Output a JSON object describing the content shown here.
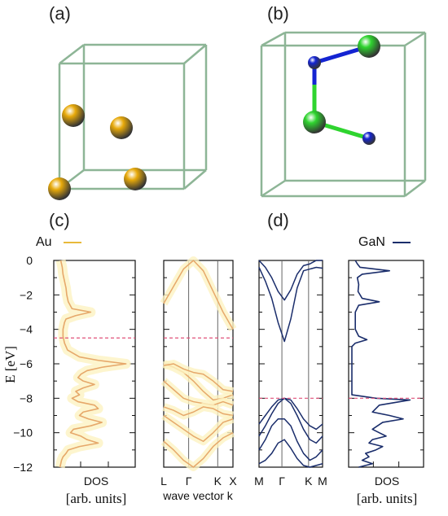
{
  "figure": {
    "labels": {
      "a": "(a)",
      "b": "(b)",
      "c": "(c)",
      "d": "(d)"
    },
    "colors": {
      "au_line": "#e8b93a",
      "au_band": "#e6a86a",
      "au_glow": "#fdf3c2",
      "gan_line": "#1a2d6b",
      "fermi": "#e0507a",
      "cell_edge": "#8db596",
      "au_atom": "#e7a90a",
      "ga_atom": "#2fd42f",
      "n_atom": "#1424d2",
      "bond_ga": "#2fd42f",
      "bond_n": "#1424d2"
    }
  },
  "chart_data": [
    {
      "type": "line",
      "panel": "Au DOS",
      "legend": "Au",
      "ylabel": "E [eV]",
      "xlabel": "DOS",
      "xunits": "[arb. units]",
      "ylim": [
        -12,
        0
      ],
      "yticks": [
        0,
        -2,
        -4,
        -6,
        -8,
        -10,
        -12
      ],
      "fermi_level": -4.5,
      "series": [
        {
          "energies": [
            0,
            -0.4,
            -0.8,
            -1.2,
            -1.6,
            -2.0,
            -2.4,
            -2.8,
            -3.0,
            -3.2,
            -3.4,
            -3.6,
            -4.0,
            -4.4,
            -4.8,
            -5.2,
            -5.6,
            -5.8,
            -6.0,
            -6.2,
            -6.4,
            -6.6,
            -6.8,
            -7.0,
            -7.2,
            -7.4,
            -7.6,
            -7.8,
            -8.0,
            -8.2,
            -8.4,
            -8.6,
            -8.8,
            -9.0,
            -9.2,
            -9.4,
            -9.6,
            -9.8,
            -10.0,
            -10.2,
            -10.4,
            -10.6,
            -10.8,
            -11.0,
            -11.2,
            -11.4,
            -11.6,
            -11.8,
            -12.0
          ],
          "dos": [
            0.05,
            0.07,
            0.08,
            0.1,
            0.12,
            0.13,
            0.15,
            0.2,
            0.45,
            0.25,
            0.12,
            0.1,
            0.08,
            0.08,
            0.1,
            0.14,
            0.3,
            0.55,
            0.92,
            0.6,
            0.4,
            0.32,
            0.28,
            0.35,
            0.5,
            0.35,
            0.25,
            0.3,
            0.2,
            0.28,
            0.5,
            0.55,
            0.35,
            0.3,
            0.42,
            0.6,
            0.45,
            0.22,
            0.18,
            0.32,
            0.4,
            0.55,
            0.3,
            0.15,
            0.12,
            0.08,
            0.06,
            0.05,
            0.04
          ]
        }
      ]
    },
    {
      "type": "line",
      "panel": "Au band structure",
      "xlabel": "wave vector k",
      "ylim": [
        -12,
        0
      ],
      "kpoints": [
        "L",
        "Γ",
        "K",
        "X"
      ],
      "fermi_level": -4.5,
      "bands": [
        {
          "energies": [
            -6.0,
            -6.2,
            -6.5,
            -7.0,
            -7.6,
            -8.1,
            -8.0,
            -7.8
          ]
        },
        {
          "energies": [
            -6.1,
            -6.0,
            -6.3,
            -6.5,
            -6.6,
            -7.0,
            -7.5,
            -7.6
          ]
        },
        {
          "energies": [
            -7.0,
            -7.5,
            -8.0,
            -8.2,
            -8.3,
            -8.4,
            -8.2,
            -8.4
          ]
        },
        {
          "energies": [
            -8.5,
            -8.7,
            -9.0,
            -8.8,
            -8.5,
            -8.6,
            -8.9,
            -9.0
          ]
        },
        {
          "energies": [
            -9.0,
            -9.4,
            -9.8,
            -10.2,
            -10.5,
            -10.0,
            -9.4,
            -9.2
          ]
        },
        {
          "energies": [
            -10.5,
            -11.0,
            -11.6,
            -12.0,
            -11.5,
            -10.8,
            -10.3,
            -10.0
          ]
        },
        {
          "energies": [
            -2.5,
            -1.5,
            -0.5,
            0.0,
            -0.6,
            -1.8,
            -3.0,
            -4.0
          ]
        }
      ]
    },
    {
      "type": "line",
      "panel": "GaN band structure",
      "ylim": [
        -12,
        0
      ],
      "kpoints": [
        "M",
        "Γ",
        "K",
        "M"
      ],
      "fermi_level": -8.0,
      "bands": [
        {
          "energies": [
            -0.4,
            -1.2,
            -2.2,
            -3.6,
            -4.7,
            -3.4,
            -1.6,
            -0.6,
            -0.5,
            -0.4,
            -0.45
          ]
        },
        {
          "energies": [
            0.0,
            -0.4,
            -1.0,
            -1.8,
            -2.3,
            -1.7,
            -0.8,
            -0.3,
            -0.2,
            0.0,
            0.0
          ]
        },
        {
          "energies": [
            -9.5,
            -9.0,
            -8.5,
            -8.1,
            -8.0,
            -8.1,
            -8.6,
            -9.2,
            -9.6,
            -9.8,
            -9.5
          ]
        },
        {
          "energies": [
            -10.2,
            -9.6,
            -8.9,
            -8.3,
            -8.0,
            -8.3,
            -9.0,
            -9.8,
            -10.4,
            -10.6,
            -10.2
          ]
        },
        {
          "energies": [
            -11.0,
            -10.4,
            -9.6,
            -9.2,
            -9.2,
            -9.6,
            -10.5,
            -11.2,
            -11.6,
            -11.4,
            -11.0
          ]
        },
        {
          "energies": [
            -11.8,
            -11.6,
            -11.2,
            -10.6,
            -10.4,
            -10.9,
            -11.5,
            -11.9,
            -12.0,
            -11.9,
            -11.8
          ]
        }
      ]
    },
    {
      "type": "line",
      "panel": "GaN DOS",
      "legend": "GaN",
      "xlabel": "DOS",
      "xunits": "[arb. units]",
      "ylim": [
        -12,
        0
      ],
      "fermi_level": -8.0,
      "series": [
        {
          "energies": [
            0,
            -0.2,
            -0.4,
            -0.6,
            -0.8,
            -1.0,
            -1.4,
            -1.8,
            -2.2,
            -2.4,
            -2.6,
            -3.0,
            -3.6,
            -4.0,
            -4.4,
            -4.6,
            -4.8,
            -5.0,
            -6.0,
            -7.0,
            -7.8,
            -8.0,
            -8.1,
            -8.2,
            -8.4,
            -8.8,
            -9.0,
            -9.2,
            -9.4,
            -9.8,
            -10.0,
            -10.2,
            -10.4,
            -10.6,
            -10.8,
            -11.0,
            -11.2,
            -11.4,
            -11.6,
            -11.8,
            -12.0
          ],
          "dos": [
            0.05,
            0.08,
            0.12,
            0.55,
            0.15,
            0.08,
            0.1,
            0.09,
            0.15,
            0.4,
            0.1,
            0.05,
            0.05,
            0.05,
            0.1,
            0.22,
            0.05,
            0.0,
            0.0,
            0.0,
            0.0,
            0.35,
            0.85,
            0.7,
            0.4,
            0.3,
            0.55,
            0.75,
            0.45,
            0.3,
            0.4,
            0.5,
            0.3,
            0.25,
            0.45,
            0.35,
            0.2,
            0.25,
            0.15,
            0.3,
            0.1
          ]
        }
      ]
    }
  ]
}
